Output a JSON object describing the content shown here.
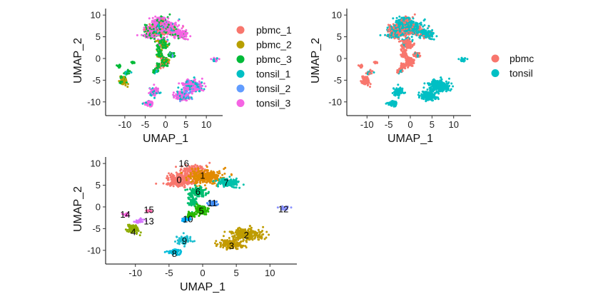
{
  "colors": {
    "pbmc_1": "#F8766D",
    "pbmc_2": "#B79F00",
    "pbmc_3": "#00BA38",
    "tonsil_1": "#00BFC4",
    "tonsil_2": "#619CFF",
    "tonsil_3": "#F564E3",
    "pbmc": "#F8766D",
    "tonsil": "#00BFC4",
    "c0": "#F8766D",
    "c1": "#E18A00",
    "c2": "#BE9C00",
    "c3": "#C39A00",
    "c4": "#8CAB00",
    "c5": "#24B700",
    "c6": "#00BE70",
    "c7": "#00C1AB",
    "c8": "#00BBDA",
    "c9": "#1FBFD0",
    "c10": "#00ACFC",
    "c11": "#3F8CF6",
    "c12": "#8B93FF",
    "c13": "#D575FE",
    "c14": "#F962DD",
    "c15": "#FF65AC",
    "c16": "#F8766D"
  },
  "chart_data": [
    {
      "id": "by-sample",
      "type": "scatter",
      "title": "",
      "xlabel": "UMAP_1",
      "ylabel": "UMAP_2",
      "xlim": [
        -14,
        14
      ],
      "ylim": [
        -12.5,
        11.5
      ],
      "xticks": [
        -10,
        -5,
        0,
        5,
        10
      ],
      "yticks": [
        -10,
        -5,
        0,
        5,
        10
      ],
      "x_tick_labels": [
        "-10",
        "-5",
        "0",
        "5",
        "10"
      ],
      "y_tick_labels": [
        "-10",
        "-5",
        "0",
        "5",
        "10"
      ],
      "legend_position": "right",
      "legend": [
        "pbmc_1",
        "pbmc_2",
        "pbmc_3",
        "tonsil_1",
        "tonsil_2",
        "tonsil_3"
      ],
      "cluster_labels": []
    },
    {
      "id": "by-tissue",
      "type": "scatter",
      "title": "",
      "xlabel": "UMAP_1",
      "ylabel": "UMAP_2",
      "xlim": [
        -14,
        14
      ],
      "ylim": [
        -12.5,
        11.5
      ],
      "xticks": [
        -10,
        -5,
        0,
        5,
        10
      ],
      "yticks": [
        -10,
        -5,
        0,
        5,
        10
      ],
      "x_tick_labels": [
        "-10",
        "-5",
        "0",
        "5",
        "10"
      ],
      "y_tick_labels": [
        "-10",
        "-5",
        "0",
        "5",
        "10"
      ],
      "legend_position": "right",
      "legend": [
        "pbmc",
        "tonsil"
      ],
      "cluster_labels": []
    },
    {
      "id": "by-cluster",
      "type": "scatter",
      "title": "",
      "xlabel": "UMAP_1",
      "ylabel": "UMAP_2",
      "xlim": [
        -14,
        14
      ],
      "ylim": [
        -12.5,
        11.5
      ],
      "xticks": [
        -10,
        -5,
        0,
        5,
        10
      ],
      "yticks": [
        -10,
        -5,
        0,
        5,
        10
      ],
      "x_tick_labels": [
        "-10",
        "-5",
        "0",
        "5",
        "10"
      ],
      "y_tick_labels": [
        "-10",
        "-5",
        "0",
        "5",
        "10"
      ],
      "legend_position": "none",
      "legend": [],
      "cluster_labels": [
        {
          "label": "0",
          "x": -3.5,
          "y": 6.2
        },
        {
          "label": "1",
          "x": 0,
          "y": 7.2
        },
        {
          "label": "2",
          "x": 6.5,
          "y": -6.5
        },
        {
          "label": "3",
          "x": 4.3,
          "y": -9
        },
        {
          "label": "4",
          "x": -10.3,
          "y": -5.8
        },
        {
          "label": "5",
          "x": -0.2,
          "y": -0.9
        },
        {
          "label": "6",
          "x": -0.7,
          "y": 3.5
        },
        {
          "label": "7",
          "x": 3.5,
          "y": 5.6
        },
        {
          "label": "8",
          "x": -4.2,
          "y": -10.8
        },
        {
          "label": "9",
          "x": -2.7,
          "y": -7.8
        },
        {
          "label": "10",
          "x": -2.2,
          "y": -2.8
        },
        {
          "label": "11",
          "x": 1.4,
          "y": 0.9
        },
        {
          "label": "12",
          "x": 12,
          "y": -0.5
        },
        {
          "label": "13",
          "x": -8,
          "y": -3.3
        },
        {
          "label": "14",
          "x": -11.5,
          "y": -1.7
        },
        {
          "label": "15",
          "x": -8,
          "y": -0.7
        },
        {
          "label": "16",
          "x": -2.8,
          "y": 10
        }
      ]
    }
  ]
}
